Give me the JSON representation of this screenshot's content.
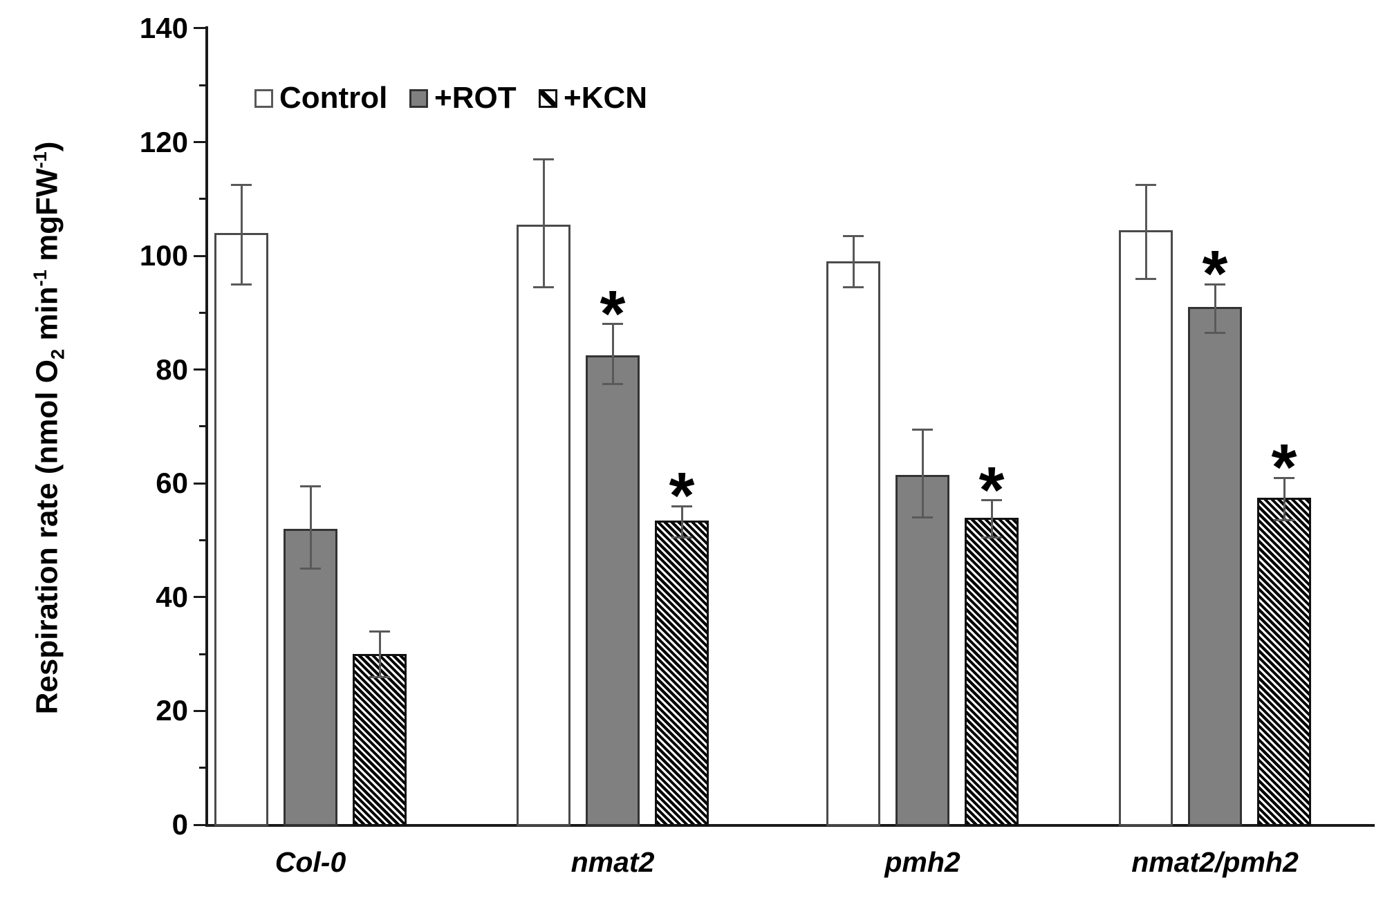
{
  "figure": {
    "background": "#ffffff",
    "significance_marker": "*"
  },
  "y_axis_title": {
    "pre": "Respiration rate (nmol O",
    "sub": "2",
    "mid": " min",
    "sup1": "-1",
    "mid2": " mgFW",
    "sup2": "-1",
    "post": ")"
  },
  "legend": {
    "position": "top-left-inside",
    "items": [
      {
        "label": "Control",
        "swatch": "white"
      },
      {
        "label": "+ROT",
        "swatch": "gray"
      },
      {
        "label": "+KCN",
        "swatch": "hatch"
      }
    ]
  },
  "colors": {
    "control_fill": "#ffffff",
    "rot_fill": "#808080",
    "hatch_foreground": "#000000",
    "bar_border": "#333333",
    "error_bar": "#595959",
    "axis": "#1a1a1a",
    "text": "#000000"
  },
  "chart_data": {
    "type": "bar",
    "title": "",
    "xlabel": "",
    "ylabel": "Respiration rate (nmol O2 min-1 mgFW-1)",
    "ylim": [
      0,
      140
    ],
    "ytick_major_step": 20,
    "ytick_minor_step": 10,
    "grid": false,
    "legend_position": "top inside",
    "categories": [
      "Col-0",
      "nmat2",
      "pmh2",
      "nmat2/pmh2"
    ],
    "series": [
      {
        "name": "Control",
        "style": "white",
        "values": [
          104,
          105.5,
          99,
          104.5
        ],
        "err_high": [
          112.5,
          117,
          103.5,
          112.5
        ],
        "err_low": [
          95,
          94.5,
          94.5,
          96
        ],
        "significant": [
          false,
          false,
          false,
          false
        ]
      },
      {
        "name": "+ROT",
        "style": "gray",
        "values": [
          52,
          82.5,
          61.5,
          91
        ],
        "err_high": [
          59.5,
          88,
          69.5,
          95
        ],
        "err_low": [
          45,
          77.5,
          54,
          86.5
        ],
        "significant": [
          false,
          true,
          false,
          true
        ]
      },
      {
        "name": "+KCN",
        "style": "hatch",
        "values": [
          30,
          53.5,
          54,
          57.5
        ],
        "err_high": [
          34,
          56,
          57,
          61
        ],
        "err_low": [
          26,
          50.5,
          50.5,
          53.5
        ],
        "significant": [
          false,
          true,
          true,
          true
        ]
      }
    ],
    "significance_marker": "*"
  }
}
